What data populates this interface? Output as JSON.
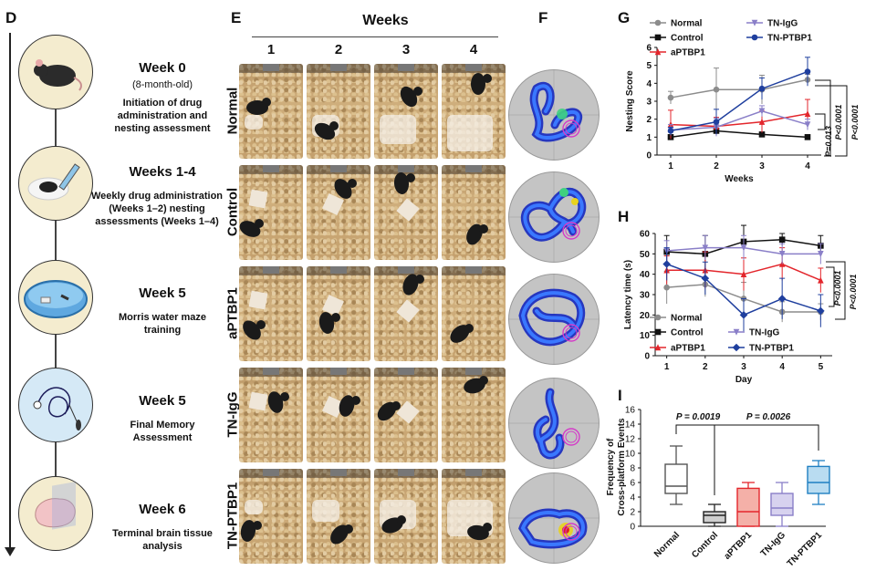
{
  "panels": {
    "d": "D",
    "e": "E",
    "f": "F",
    "g": "G",
    "h": "H",
    "i": "I"
  },
  "timeline": [
    {
      "title": "Week 0",
      "sub": "(8-month-old)",
      "desc": "Initiation of drug administration and nesting assessment"
    },
    {
      "title": "Weeks 1-4",
      "sub": "",
      "desc": "Weekly drug administration (Weeks 1–2) nesting assessments (Weeks 1–4)"
    },
    {
      "title": "Week 5",
      "sub": "",
      "desc": "Morris water maze training"
    },
    {
      "title": "Week 5",
      "sub": "",
      "desc": "Final Memory Assessment"
    },
    {
      "title": "Week 6",
      "sub": "",
      "desc": "Terminal brain tissue analysis"
    }
  ],
  "photo_grid": {
    "header": "Weeks",
    "columns": [
      "1",
      "2",
      "3",
      "4"
    ],
    "rows": [
      "Normal",
      "Control",
      "aPTBP1",
      "TN-IgG",
      "TN-PTBP1"
    ]
  },
  "chart_data": [
    {
      "id": "G",
      "type": "line",
      "xlabel": "Weeks",
      "ylabel": "Nesting Score",
      "x": [
        1,
        2,
        3,
        4
      ],
      "ylim": [
        0,
        6
      ],
      "yticks": [
        0,
        1,
        2,
        3,
        4,
        5,
        6
      ],
      "legend_position": "top",
      "series": [
        {
          "name": "Normal",
          "color": "#8c8c8c",
          "marker": "circle",
          "values": [
            3.2,
            3.65,
            3.65,
            4.2
          ],
          "err": [
            0.35,
            1.2,
            0.8,
            0.3
          ]
        },
        {
          "name": "Control",
          "color": "#111111",
          "marker": "square",
          "values": [
            1.0,
            1.35,
            1.15,
            1.0
          ],
          "err": [
            0.05,
            0.15,
            0.1,
            0.05
          ]
        },
        {
          "name": "aPTBP1",
          "color": "#e3262c",
          "marker": "triangle",
          "values": [
            1.7,
            1.6,
            1.85,
            2.3
          ],
          "err": [
            0.8,
            0.5,
            0.6,
            0.8
          ]
        },
        {
          "name": "TN-IgG",
          "color": "#8a7fc8",
          "marker": "triangle-down",
          "values": [
            1.4,
            1.55,
            2.45,
            1.7
          ],
          "err": [
            0.3,
            0.5,
            0.3,
            0.3
          ]
        },
        {
          "name": "TN-PTBP1",
          "color": "#1f3f9e",
          "marker": "circle",
          "values": [
            1.35,
            1.85,
            3.7,
            4.65
          ],
          "err": [
            0.2,
            0.7,
            0.6,
            0.8
          ]
        }
      ],
      "stats": [
        "P<0.0001",
        "P<0.0001",
        "P=0.013"
      ]
    },
    {
      "id": "H",
      "type": "line",
      "xlabel": "Day",
      "ylabel": "Latency time (s)",
      "x": [
        1,
        2,
        3,
        4,
        5
      ],
      "ylim": [
        0,
        60
      ],
      "yticks": [
        0,
        10,
        20,
        30,
        40,
        50,
        60
      ],
      "legend_position": "bottom-left",
      "series": [
        {
          "name": "Normal",
          "color": "#8c8c8c",
          "marker": "circle",
          "values": [
            33.5,
            35,
            28,
            21.5,
            21.5
          ],
          "err": [
            8,
            6,
            8,
            5,
            4
          ]
        },
        {
          "name": "Control",
          "color": "#111111",
          "marker": "square",
          "values": [
            51,
            50,
            56,
            57,
            54
          ],
          "err": [
            8,
            9,
            8,
            3,
            5
          ]
        },
        {
          "name": "aPTBP1",
          "color": "#e3262c",
          "marker": "triangle",
          "values": [
            42,
            42,
            40,
            45,
            37
          ],
          "err": [
            7,
            9,
            8,
            8,
            6
          ]
        },
        {
          "name": "TN-IgG",
          "color": "#8a7fc8",
          "marker": "triangle-down",
          "values": [
            51.5,
            53,
            53,
            50,
            50
          ],
          "err": [
            5,
            6,
            6,
            5,
            5
          ]
        },
        {
          "name": "TN-PTBP1",
          "color": "#1f3f9e",
          "marker": "diamond",
          "values": [
            45,
            38,
            20,
            28,
            22
          ],
          "err": [
            8,
            8,
            8,
            10,
            8
          ]
        }
      ],
      "stats": [
        "P<0.0001",
        "P<0.0001"
      ]
    },
    {
      "id": "I",
      "type": "box",
      "ylabel": "Frequency of Cross-platform Events",
      "ylim": [
        0,
        16
      ],
      "yticks": [
        0,
        2,
        4,
        6,
        8,
        10,
        12,
        14,
        16
      ],
      "categories": [
        "Normal",
        "Control",
        "aPTBP1",
        "TN-IgG",
        "TN-PTBP1"
      ],
      "boxes": [
        {
          "min": 3,
          "q1": 4.5,
          "median": 5.5,
          "q3": 8.5,
          "max": 11,
          "color": "#555555",
          "fill": "#ffffff"
        },
        {
          "min": 0,
          "q1": 0.5,
          "median": 1.5,
          "q3": 2,
          "max": 3,
          "color": "#222222",
          "fill": "#cfcfcf"
        },
        {
          "min": 0,
          "q1": 0,
          "median": 2,
          "q3": 5.2,
          "max": 6,
          "color": "#e3262c",
          "fill": "#f4b0a8"
        },
        {
          "min": 0,
          "q1": 1.5,
          "median": 2.5,
          "q3": 4.5,
          "max": 6,
          "color": "#8a7fc8",
          "fill": "#d7d2ef"
        },
        {
          "min": 3,
          "q1": 4.5,
          "median": 6,
          "q3": 8.2,
          "max": 9,
          "color": "#1f7fc2",
          "fill": "#b9dcf1"
        }
      ],
      "stats": [
        "P = 0.0019",
        "P = 0.0026"
      ]
    }
  ]
}
